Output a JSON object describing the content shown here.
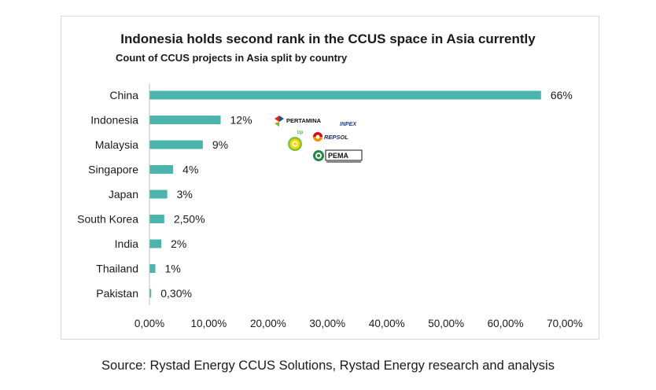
{
  "chart_data": {
    "type": "bar",
    "orientation": "horizontal",
    "title": "Indonesia holds second rank in the CCUS space in Asia currently",
    "subtitle": "Count of CCUS projects in Asia split by country",
    "categories": [
      "China",
      "Indonesia",
      "Malaysia",
      "Singapore",
      "Japan",
      "South Korea",
      "India",
      "Thailand",
      "Pakistan"
    ],
    "values": [
      66,
      12,
      9,
      4,
      3,
      2.5,
      2,
      1,
      0.3
    ],
    "value_labels": [
      "66%",
      "12%",
      "9%",
      "4%",
      "3%",
      "2,50%",
      "2%",
      "1%",
      "0,30%"
    ],
    "x_ticks": [
      "0,00%",
      "10,00%",
      "20,00%",
      "30,00%",
      "40,00%",
      "50,00%",
      "60,00%",
      "70,00%"
    ],
    "xlim": [
      0,
      70
    ],
    "bar_color": "#4bb5ad",
    "grid": false,
    "legend": "none"
  },
  "logos": {
    "pertamina": "PERTAMINA",
    "inpex": "INPEX",
    "bp": "bp",
    "repsol": "REPSOL",
    "pema": "PEMA"
  },
  "source": "Source: Rystad Energy CCUS Solutions, Rystad Energy research and analysis"
}
